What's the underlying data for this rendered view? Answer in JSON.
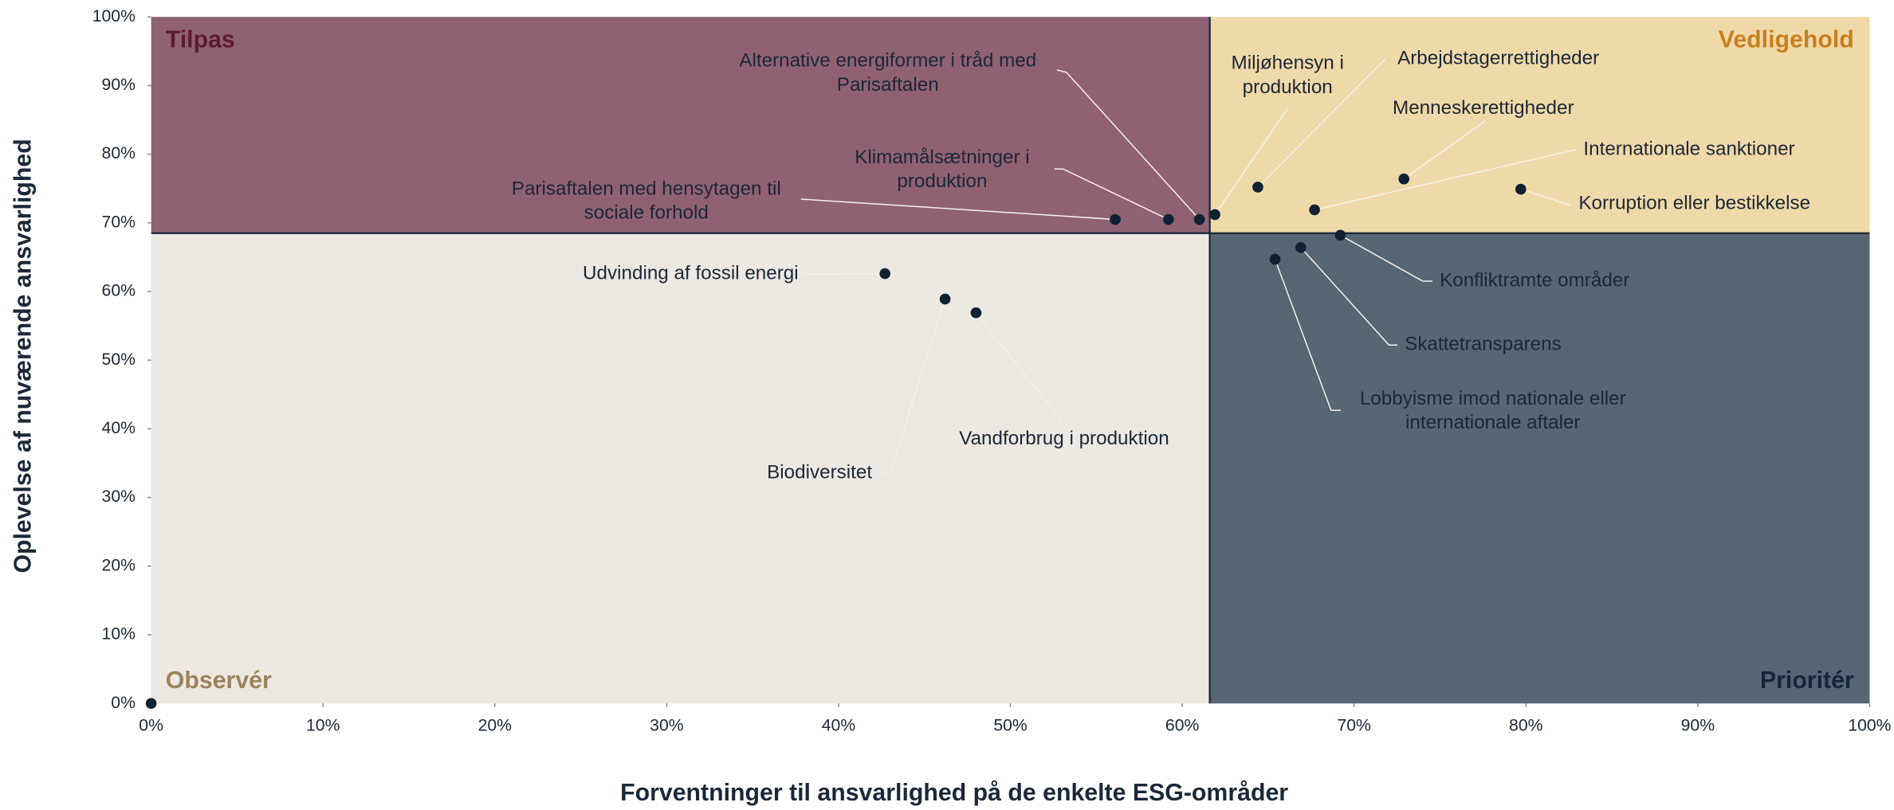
{
  "chart_data": {
    "type": "scatter",
    "x_label": "Forventninger til ansvarlighed på de enkelte ESG-områder",
    "y_label": "Oplevelse af nuværende ansvarlighed",
    "xlim": [
      0,
      100
    ],
    "ylim": [
      0,
      100
    ],
    "xticks": [
      {
        "value": 0,
        "label": "0%"
      },
      {
        "value": 10,
        "label": "10%"
      },
      {
        "value": 20,
        "label": "20%"
      },
      {
        "value": 30,
        "label": "30%"
      },
      {
        "value": 40,
        "label": "40%"
      },
      {
        "value": 50,
        "label": "50%"
      },
      {
        "value": 60,
        "label": "60%"
      },
      {
        "value": 70,
        "label": "70%"
      },
      {
        "value": 80,
        "label": "80%"
      },
      {
        "value": 90,
        "label": "90%"
      },
      {
        "value": 100,
        "label": "100%"
      }
    ],
    "yticks": [
      {
        "value": 0,
        "label": "0%"
      },
      {
        "value": 10,
        "label": "10%"
      },
      {
        "value": 20,
        "label": "20%"
      },
      {
        "value": 30,
        "label": "30%"
      },
      {
        "value": 40,
        "label": "40%"
      },
      {
        "value": 50,
        "label": "50%"
      },
      {
        "value": 60,
        "label": "60%"
      },
      {
        "value": 70,
        "label": "70%"
      },
      {
        "value": 80,
        "label": "80%"
      },
      {
        "value": 90,
        "label": "90%"
      },
      {
        "value": 100,
        "label": "100%"
      }
    ],
    "quadrant_split": {
      "x": 61.6,
      "y": 68.5
    },
    "quadrants": [
      {
        "name": "Tilpas",
        "corner": "top-left",
        "color": "#8f6173",
        "text_color": "#5e1a33"
      },
      {
        "name": "Vedligehold",
        "corner": "top-right",
        "color": "#f0d9a8",
        "text_color": "#c97f1e"
      },
      {
        "name": "Observér",
        "corner": "bottom-left",
        "color": "#ede8e1",
        "text_color": "#9b835a"
      },
      {
        "name": "Prioritér",
        "corner": "bottom-right",
        "color": "#566673",
        "text_color": "#14263a"
      }
    ],
    "point_color": "#0f2233",
    "points": [
      {
        "label": [
          "Parisaftalen med hensytagen til",
          "sociale forhold"
        ],
        "x": 56.1,
        "y": 70.5
      },
      {
        "label": [
          "Klimamålsætninger i",
          "produktion"
        ],
        "x": 59.2,
        "y": 70.5
      },
      {
        "label": [
          "Alternative energiformer i tråd med",
          "Parisaftalen"
        ],
        "x": 61.0,
        "y": 70.5
      },
      {
        "label": [
          "Miljøhensyn i",
          "produktion"
        ],
        "x": 61.9,
        "y": 71.2
      },
      {
        "label": [
          "Arbejdstagerrettigheder"
        ],
        "x": 64.4,
        "y": 75.2
      },
      {
        "label": [
          "Menneskerettigheder"
        ],
        "x": 72.9,
        "y": 76.4
      },
      {
        "label": [
          "Internationale sanktioner"
        ],
        "x": 67.7,
        "y": 71.9
      },
      {
        "label": [
          "Korruption eller bestikkelse"
        ],
        "x": 79.7,
        "y": 74.9
      },
      {
        "label": [
          "Konfliktramte områder"
        ],
        "x": 69.2,
        "y": 68.2
      },
      {
        "label": [
          "Skattetransparens"
        ],
        "x": 66.9,
        "y": 66.4
      },
      {
        "label": [
          "Lobbyisme imod nationale eller",
          "internationale aftaler"
        ],
        "x": 65.4,
        "y": 64.7
      },
      {
        "label": [
          "Udvinding af fossil energi"
        ],
        "x": 42.7,
        "y": 62.6
      },
      {
        "label": [
          "Biodiversitet"
        ],
        "x": 46.2,
        "y": 58.9
      },
      {
        "label": [
          "Vandforbrug i produktion"
        ],
        "x": 48.0,
        "y": 56.9
      },
      {
        "label": null,
        "x": 0,
        "y": 0
      }
    ]
  }
}
